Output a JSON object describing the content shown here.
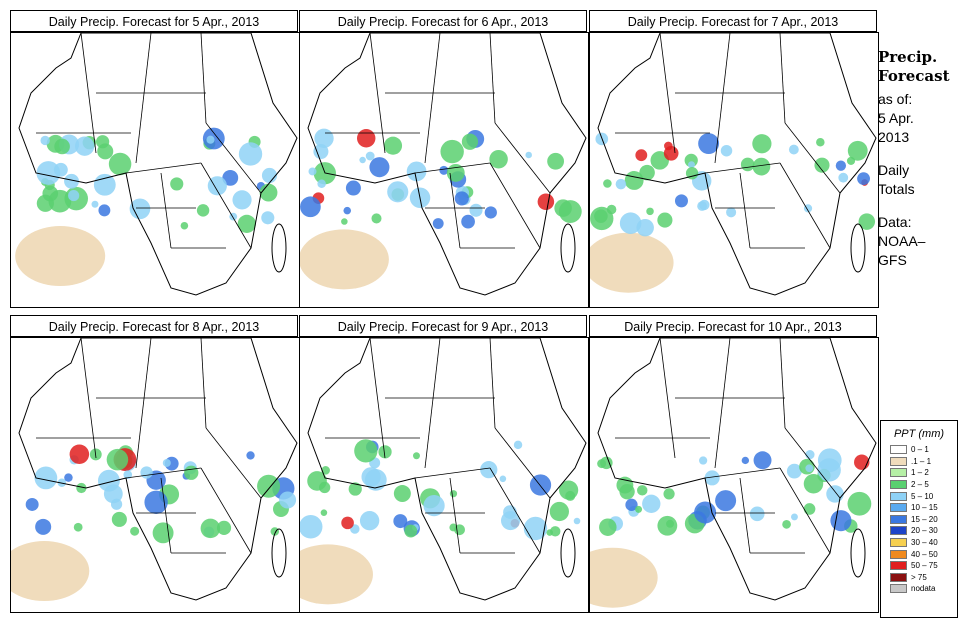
{
  "panels": [
    {
      "title": "Daily Precip. Forecast for  5 Apr., 2013"
    },
    {
      "title": "Daily Precip. Forecast for  6 Apr., 2013"
    },
    {
      "title": "Daily Precip. Forecast for  7 Apr., 2013"
    },
    {
      "title": "Daily Precip. Forecast for  8 Apr., 2013"
    },
    {
      "title": "Daily Precip. Forecast for  9 Apr., 2013"
    },
    {
      "title": "Daily Precip. Forecast for  10 Apr., 2013"
    }
  ],
  "sidebar": {
    "heading1": "Precip.",
    "heading2": "Forecast",
    "asof1": "as of:",
    "asof2": "5 Apr.",
    "asof3": "2013",
    "totals1": "Daily",
    "totals2": "Totals",
    "data1": "Data:",
    "data2": "NOAA–",
    "data3": "GFS"
  },
  "legend": {
    "title": "PPT (mm)",
    "items": [
      {
        "label": "0 – 1",
        "color": "#ffffff"
      },
      {
        "label": ".1 – 1",
        "color": "#f0dcbc"
      },
      {
        "label": "1 – 2",
        "color": "#b6f0a6"
      },
      {
        "label": "2 – 5",
        "color": "#5ad070"
      },
      {
        "label": "5 – 10",
        "color": "#8fd2f6"
      },
      {
        "label": "10 – 15",
        "color": "#5aaaf0"
      },
      {
        "label": "15 – 20",
        "color": "#3b78e0"
      },
      {
        "label": "20 – 30",
        "color": "#1e44c8"
      },
      {
        "label": "30 – 40",
        "color": "#f6d050"
      },
      {
        "label": "40 – 50",
        "color": "#f08a1e"
      },
      {
        "label": "50 – 75",
        "color": "#e01e1e"
      },
      {
        "label": "> 75",
        "color": "#8a1010"
      },
      {
        "label": "nodata",
        "color": "#c8c8c8"
      }
    ]
  }
}
